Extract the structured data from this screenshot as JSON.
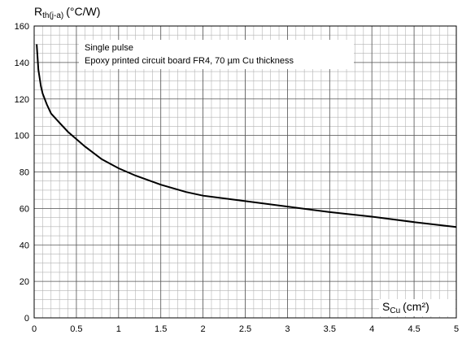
{
  "chart_data": {
    "type": "line",
    "ylabel": {
      "main": "R",
      "sub": "th(j-a)",
      "unit": "(°C/W)"
    },
    "xlabel": {
      "main": "S",
      "sub": "Cu",
      "unit": "(cm²)"
    },
    "xlim": [
      0,
      5
    ],
    "ylim": [
      0,
      160
    ],
    "x_ticks": [
      "0",
      "0.5",
      "1",
      "1.5",
      "2",
      "2.5",
      "3",
      "3.5",
      "4",
      "4.5",
      "5"
    ],
    "y_ticks": [
      "0",
      "20",
      "40",
      "60",
      "80",
      "100",
      "120",
      "140",
      "160"
    ],
    "grid": true,
    "annotation_lines": [
      "Single pulse",
      "Epoxy printed circuit board FR4, 70 µm Cu thickness"
    ],
    "series": [
      {
        "x": [
          0.03,
          0.05,
          0.08,
          0.1,
          0.15,
          0.2,
          0.3,
          0.4,
          0.5,
          0.6,
          0.8,
          1.0,
          1.2,
          1.5,
          1.8,
          2.0,
          2.5,
          3.0,
          3.5,
          4.0,
          4.5,
          5.0
        ],
        "values": [
          150,
          136,
          127,
          123,
          117,
          112,
          107,
          102,
          98,
          94,
          87,
          82,
          78,
          73,
          69,
          67,
          64,
          61,
          58,
          55.5,
          52.5,
          49.8
        ]
      }
    ]
  }
}
